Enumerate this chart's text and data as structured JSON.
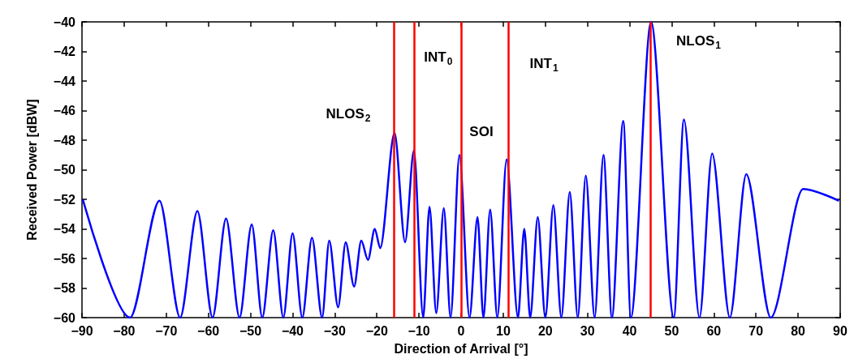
{
  "chart_data": {
    "type": "line",
    "xlabel": "Direction of Arrival [°]",
    "ylabel": "Received Power [dBW]",
    "xlim": [
      -90,
      90
    ],
    "xticks": [
      -90,
      -80,
      -70,
      -60,
      -50,
      -40,
      -30,
      -20,
      -10,
      0,
      10,
      20,
      30,
      40,
      50,
      60,
      70,
      80,
      90
    ],
    "ylim": [
      -60,
      -40
    ],
    "yticks": [
      -60,
      -58,
      -56,
      -54,
      -52,
      -50,
      -48,
      -46,
      -44,
      -42,
      -40
    ],
    "grid": false,
    "marker": "none",
    "line_style": "solid",
    "series": [
      {
        "color": "#0000ff",
        "x": [
          -89.8,
          -78.6,
          -71.6,
          -66.7,
          -62.6,
          -59.0,
          -55.8,
          -52.6,
          -49.7,
          -47.2,
          -44.6,
          -42.2,
          -40.0,
          -37.7,
          -35.4,
          -33.0,
          -31.3,
          -29.2,
          -27.4,
          -25.4,
          -23.7,
          -22.1,
          -20.5,
          -19.2,
          -15.8,
          -13.3,
          -11.2,
          -9.0,
          -7.5,
          -5.9,
          -4.1,
          -2.5,
          -0.4,
          2.0,
          3.9,
          5.3,
          6.9,
          8.6,
          10.8,
          13.5,
          15.0,
          16.4,
          18.2,
          20.0,
          21.9,
          23.8,
          25.8,
          27.7,
          29.6,
          31.7,
          33.8,
          35.8,
          38.5,
          40.3,
          45.1,
          50.5,
          52.9,
          56.6,
          59.6,
          63.8,
          67.7,
          73.5,
          81.2,
          89.7
        ],
        "values": [
          -52.0,
          -60,
          -52.1,
          -60,
          -52.8,
          -60,
          -53.3,
          -60,
          -53.7,
          -60,
          -54.1,
          -60,
          -54.3,
          -60,
          -54.6,
          -60,
          -54.8,
          -59.3,
          -54.9,
          -57.9,
          -54.8,
          -56.1,
          -54.0,
          -55.3,
          -47.5,
          -54.9,
          -48.7,
          -60,
          -52.5,
          -59.7,
          -52.6,
          -60,
          -49.0,
          -60,
          -53.2,
          -60,
          -52.7,
          -60,
          -49.3,
          -60,
          -54.0,
          -60,
          -53.2,
          -60,
          -52.4,
          -60,
          -51.5,
          -60,
          -50.4,
          -60,
          -49.0,
          -60,
          -46.7,
          -60,
          -40.0,
          -60,
          -46.6,
          -60,
          -48.9,
          -60,
          -50.3,
          -60,
          -51.3,
          -52.1
        ]
      }
    ],
    "ref_lines": [
      {
        "axis": "x",
        "value": -16,
        "color": "#ff0000",
        "label": "NLOS$_{2}$"
      },
      {
        "axis": "x",
        "value": -11.2,
        "color": "#ff0000",
        "label": "INT$_{0}$"
      },
      {
        "axis": "x",
        "value": 0,
        "color": "#ff0000",
        "label": "SOI"
      },
      {
        "axis": "x",
        "value": 11.2,
        "color": "#ff0000",
        "label": "INT$_{1}$"
      },
      {
        "axis": "x",
        "value": 45,
        "color": "#ff0000",
        "label": "NLOS$_{1}$"
      }
    ]
  }
}
